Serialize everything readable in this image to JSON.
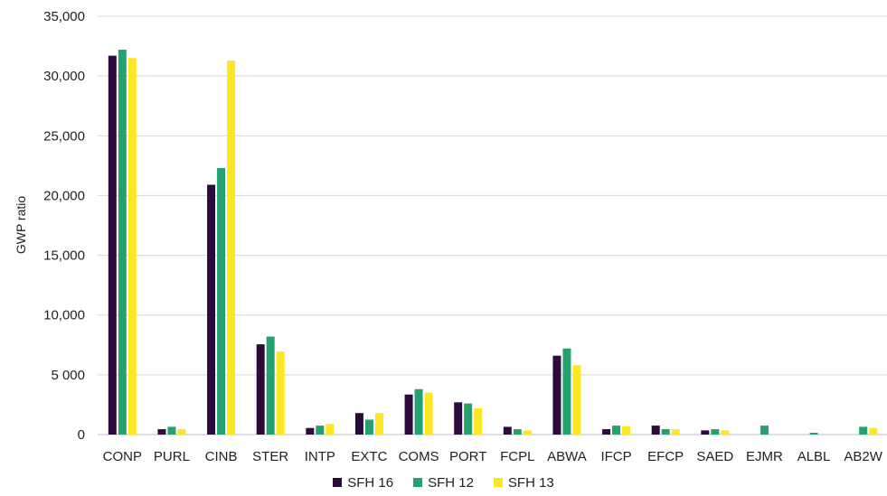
{
  "chart_data": {
    "type": "bar",
    "title": "",
    "xlabel": "",
    "ylabel": "GWP ratio",
    "ylim": [
      0,
      35000
    ],
    "yticks": [
      0,
      5000,
      10000,
      15000,
      20000,
      25000,
      30000,
      35000
    ],
    "ytick_labels": [
      "0",
      "5 000",
      "10,000",
      "15,000",
      "20,000",
      "25,000",
      "30,000",
      "35,000"
    ],
    "grid": true,
    "legend_position": "bottom",
    "categories": [
      "CONP",
      "PURL",
      "CINB",
      "STER",
      "INTP",
      "EXTC",
      "COMS",
      "PORT",
      "FCPL",
      "ABWA",
      "IFCP",
      "EFCP",
      "SAED",
      "EJMR",
      "ALBL",
      "AB2W"
    ],
    "series": [
      {
        "name": "SFH 16",
        "color": "#2d0a3c",
        "values": [
          31700,
          450,
          20900,
          7550,
          550,
          1800,
          3350,
          2700,
          650,
          6600,
          450,
          750,
          350,
          0,
          0,
          0
        ]
      },
      {
        "name": "SFH 12",
        "color": "#23a26f",
        "values": [
          32200,
          650,
          22300,
          8200,
          750,
          1250,
          3800,
          2600,
          450,
          7200,
          750,
          450,
          450,
          750,
          150,
          650
        ]
      },
      {
        "name": "SFH 13",
        "color": "#fde725",
        "values": [
          31500,
          450,
          31300,
          6950,
          900,
          1800,
          3500,
          2200,
          350,
          5800,
          700,
          450,
          350,
          0,
          0,
          550
        ]
      }
    ]
  }
}
